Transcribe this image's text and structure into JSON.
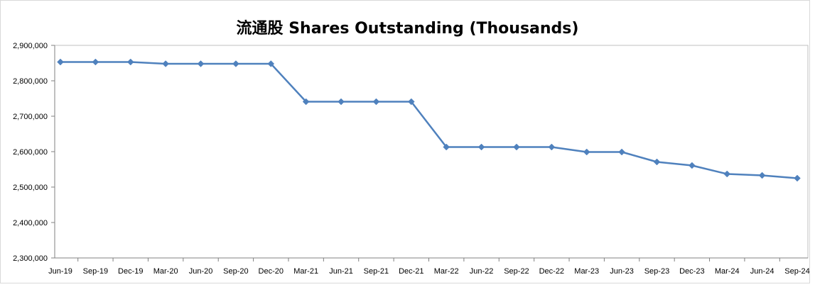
{
  "chart_data": {
    "type": "line",
    "title": "流通股 Shares Outstanding (Thousands)",
    "xlabel": "",
    "ylabel": "",
    "ylim": [
      2300000,
      2900000
    ],
    "y_ticks": [
      "2,300,000",
      "2,400,000",
      "2,500,000",
      "2,600,000",
      "2,700,000",
      "2,800,000",
      "2,900,000"
    ],
    "y_tick_values": [
      2300000,
      2400000,
      2500000,
      2600000,
      2700000,
      2800000,
      2900000
    ],
    "grid": false,
    "categories": [
      "Jun-19",
      "Sep-19",
      "Dec-19",
      "Mar-20",
      "Jun-20",
      "Sep-20",
      "Dec-20",
      "Mar-21",
      "Jun-21",
      "Sep-21",
      "Dec-21",
      "Mar-22",
      "Jun-22",
      "Sep-22",
      "Dec-22",
      "Mar-23",
      "Jun-23",
      "Sep-23",
      "Dec-23",
      "Mar-24",
      "Jun-24",
      "Sep-24"
    ],
    "series": [
      {
        "color": "#4F81BD",
        "marker": "diamond",
        "values": [
          2853000,
          2853000,
          2853000,
          2848000,
          2848000,
          2848000,
          2848000,
          2741000,
          2741000,
          2741000,
          2741000,
          2613000,
          2613000,
          2613000,
          2613000,
          2599000,
          2599000,
          2571000,
          2561000,
          2537000,
          2533000,
          2525000
        ]
      }
    ]
  }
}
